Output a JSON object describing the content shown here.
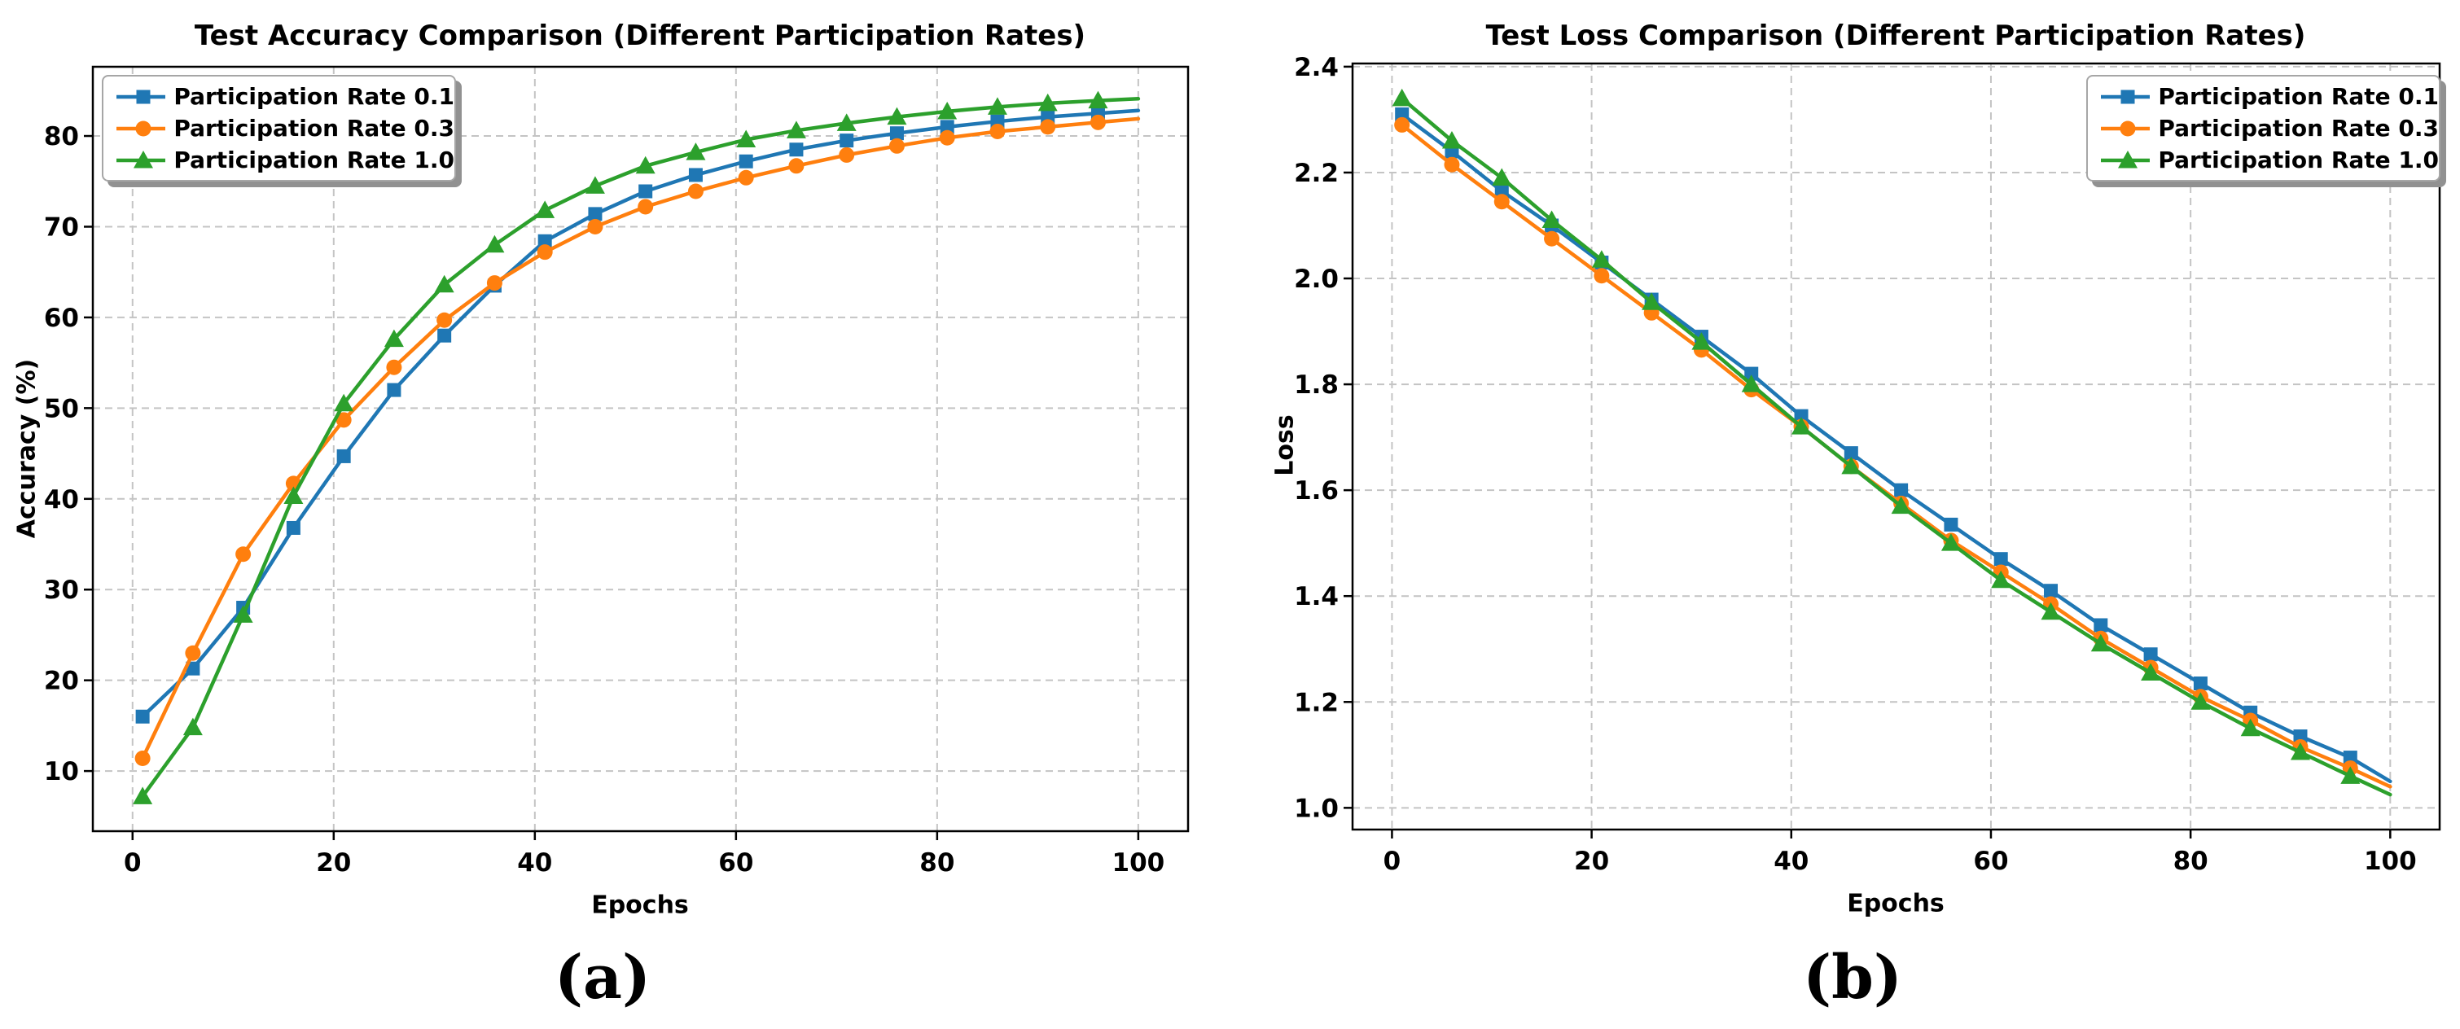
{
  "figure": {
    "background": "#ffffff",
    "caption_a": "(a)",
    "caption_b": "(b)",
    "grid_color": "#c4c4c4",
    "spine_color": "#000000"
  },
  "chart_data": [
    {
      "id": "accuracy",
      "type": "line",
      "title": "Test Accuracy Comparison (Different Participation Rates)",
      "xlabel": "Epochs",
      "ylabel": "Accuracy (%)",
      "xlim": [
        -3.95,
        104.95
      ],
      "ylim": [
        3.37,
        87.63
      ],
      "xticks": {
        "values": [
          0,
          20,
          40,
          60,
          80,
          100
        ],
        "labels": [
          "0",
          "20",
          "40",
          "60",
          "80",
          "100"
        ]
      },
      "yticks": {
        "values": [
          10,
          20,
          30,
          40,
          50,
          60,
          70,
          80
        ],
        "labels": [
          "10",
          "20",
          "30",
          "40",
          "50",
          "60",
          "70",
          "80"
        ]
      },
      "grid": true,
      "legend_position": "upper left",
      "x": [
        1,
        6,
        11,
        16,
        21,
        26,
        31,
        36,
        41,
        46,
        51,
        56,
        61,
        66,
        71,
        76,
        81,
        86,
        91,
        96,
        100
      ],
      "marker_count": 20,
      "series": [
        {
          "name": "Participation Rate 0.1",
          "color": "#1f77b4",
          "marker": "square",
          "values": [
            16.0,
            21.3,
            28.0,
            36.8,
            44.7,
            52.0,
            58.0,
            63.5,
            68.4,
            71.4,
            73.9,
            75.7,
            77.2,
            78.5,
            79.5,
            80.3,
            81.0,
            81.6,
            82.1,
            82.5,
            82.8
          ]
        },
        {
          "name": "Participation Rate 0.3",
          "color": "#ff7f0e",
          "marker": "circle",
          "values": [
            11.4,
            23.0,
            33.9,
            41.7,
            48.7,
            54.5,
            59.7,
            63.8,
            67.2,
            70.0,
            72.2,
            73.9,
            75.4,
            76.7,
            77.9,
            78.9,
            79.8,
            80.5,
            81.0,
            81.5,
            81.9
          ]
        },
        {
          "name": "Participation Rate 1.0",
          "color": "#2ca02c",
          "marker": "triangle",
          "values": [
            7.2,
            14.8,
            27.2,
            40.3,
            50.5,
            57.6,
            63.6,
            68.0,
            71.8,
            74.5,
            76.7,
            78.2,
            79.6,
            80.6,
            81.4,
            82.1,
            82.7,
            83.2,
            83.6,
            83.9,
            84.1
          ]
        }
      ]
    },
    {
      "id": "loss",
      "type": "line",
      "title": "Test Loss Comparison (Different Participation Rates)",
      "xlabel": "Epochs",
      "ylabel": "Loss",
      "xlim": [
        -3.95,
        104.95
      ],
      "ylim": [
        0.959,
        2.406
      ],
      "xticks": {
        "values": [
          0,
          20,
          40,
          60,
          80,
          100
        ],
        "labels": [
          "0",
          "20",
          "40",
          "60",
          "80",
          "100"
        ]
      },
      "yticks": {
        "values": [
          1.0,
          1.2,
          1.4,
          1.6,
          1.8,
          2.0,
          2.2,
          2.4
        ],
        "labels": [
          "1.0",
          "1.2",
          "1.4",
          "1.6",
          "1.8",
          "2.0",
          "2.2",
          "2.4"
        ]
      },
      "grid": true,
      "legend_position": "upper right",
      "x": [
        1,
        6,
        11,
        16,
        21,
        26,
        31,
        36,
        41,
        46,
        51,
        56,
        61,
        66,
        71,
        76,
        81,
        86,
        91,
        96,
        100
      ],
      "marker_count": 20,
      "series": [
        {
          "name": "Participation Rate 0.1",
          "color": "#1f77b4",
          "marker": "square",
          "values": [
            2.31,
            2.24,
            2.165,
            2.1,
            2.03,
            1.96,
            1.89,
            1.82,
            1.74,
            1.67,
            1.6,
            1.535,
            1.47,
            1.41,
            1.345,
            1.29,
            1.235,
            1.18,
            1.135,
            1.095,
            1.05
          ]
        },
        {
          "name": "Participation Rate 0.3",
          "color": "#ff7f0e",
          "marker": "circle",
          "values": [
            2.29,
            2.215,
            2.145,
            2.075,
            2.005,
            1.935,
            1.865,
            1.79,
            1.72,
            1.645,
            1.575,
            1.505,
            1.445,
            1.385,
            1.32,
            1.265,
            1.21,
            1.165,
            1.115,
            1.075,
            1.04
          ]
        },
        {
          "name": "Participation Rate 1.0",
          "color": "#2ca02c",
          "marker": "triangle",
          "values": [
            2.34,
            2.26,
            2.19,
            2.11,
            2.035,
            1.955,
            1.88,
            1.8,
            1.72,
            1.645,
            1.57,
            1.5,
            1.43,
            1.37,
            1.31,
            1.255,
            1.2,
            1.15,
            1.105,
            1.06,
            1.025
          ]
        }
      ]
    }
  ]
}
